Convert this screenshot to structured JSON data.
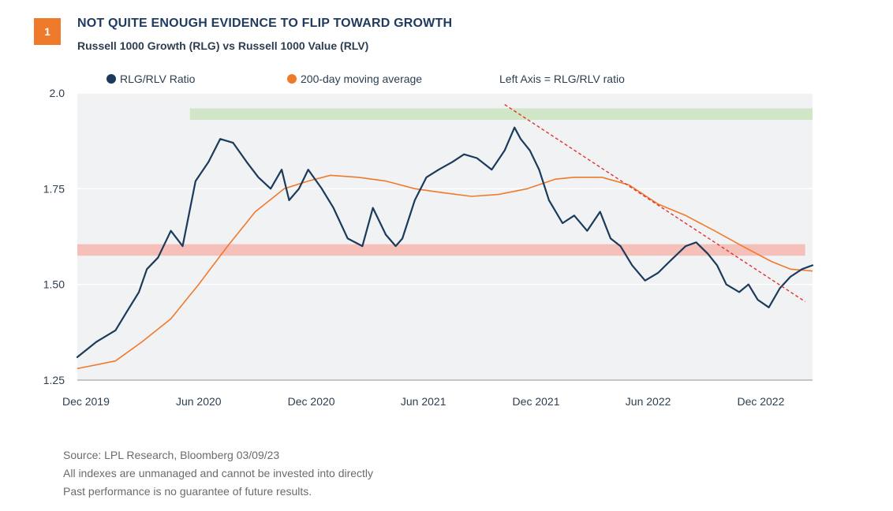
{
  "header": {
    "badge": "1",
    "title": "NOT QUITE ENOUGH EVIDENCE TO FLIP TOWARD GROWTH",
    "subtitle": "Russell 1000 Growth (RLG) vs Russell 1000 Value (RLV)"
  },
  "footnotes": [
    "Source: LPL Research, Bloomberg  03/09/23",
    "All indexes are unmanaged and cannot be invested into directly",
    "Past performance is no guarantee of future results."
  ],
  "colors": {
    "ratio": "#1b3a5c",
    "moving_average": "#f07a2b",
    "trendline": "#e0332f",
    "resistance_band": "#cfe4c4",
    "support_band": "#f4bdb6",
    "plot_background": "#f1f2f3",
    "gridline": "#ffffff"
  },
  "chart_data": {
    "type": "line",
    "legend": {
      "placement": "top",
      "note": "Left Axis = RLG/RLV ratio"
    },
    "x_ticks": [
      "Dec 2019",
      "Jun 2020",
      "Dec 2020",
      "Jun 2021",
      "Dec 2021",
      "Jun 2022",
      "Dec 2022"
    ],
    "ylim": [
      1.25,
      2.0
    ],
    "y_ticks": [
      {
        "value": 2.0,
        "label": "2.0"
      },
      {
        "value": 1.75,
        "label": "1.75"
      },
      {
        "value": 1.5,
        "label": "1.50"
      },
      {
        "value": 1.25,
        "label": "1.25"
      }
    ],
    "xlim": [
      "2019-12-01",
      "2023-03-09"
    ],
    "grid": true,
    "series": [
      {
        "name": "RLG/RLV Ratio",
        "key": "ratio",
        "x": [
          "2019-12-01",
          "2020-01-01",
          "2020-02-01",
          "2020-02-20",
          "2020-03-10",
          "2020-03-23",
          "2020-04-10",
          "2020-05-01",
          "2020-05-20",
          "2020-06-10",
          "2020-07-01",
          "2020-07-20",
          "2020-08-10",
          "2020-09-01",
          "2020-09-20",
          "2020-10-10",
          "2020-10-28",
          "2020-11-09",
          "2020-11-25",
          "2020-12-10",
          "2021-01-01",
          "2021-01-20",
          "2021-02-12",
          "2021-03-08",
          "2021-03-25",
          "2021-04-15",
          "2021-05-01",
          "2021-05-12",
          "2021-06-01",
          "2021-06-20",
          "2021-07-10",
          "2021-08-01",
          "2021-08-20",
          "2021-09-10",
          "2021-10-04",
          "2021-10-25",
          "2021-11-10",
          "2021-11-20",
          "2021-12-05",
          "2021-12-20",
          "2022-01-05",
          "2022-01-27",
          "2022-02-15",
          "2022-03-08",
          "2022-03-29",
          "2022-04-15",
          "2022-05-01",
          "2022-05-20",
          "2022-06-10",
          "2022-07-01",
          "2022-07-20",
          "2022-08-15",
          "2022-09-01",
          "2022-09-20",
          "2022-10-05",
          "2022-10-20",
          "2022-11-10",
          "2022-11-25",
          "2022-12-10",
          "2022-12-28",
          "2023-01-15",
          "2023-02-01",
          "2023-02-20",
          "2023-03-09"
        ],
        "values": [
          1.31,
          1.35,
          1.38,
          1.43,
          1.48,
          1.54,
          1.57,
          1.64,
          1.6,
          1.77,
          1.82,
          1.88,
          1.87,
          1.82,
          1.78,
          1.75,
          1.8,
          1.72,
          1.75,
          1.8,
          1.75,
          1.7,
          1.62,
          1.6,
          1.7,
          1.63,
          1.6,
          1.62,
          1.72,
          1.78,
          1.8,
          1.82,
          1.84,
          1.83,
          1.8,
          1.85,
          1.91,
          1.88,
          1.85,
          1.8,
          1.72,
          1.66,
          1.68,
          1.64,
          1.69,
          1.62,
          1.6,
          1.55,
          1.51,
          1.53,
          1.56,
          1.6,
          1.61,
          1.58,
          1.55,
          1.5,
          1.48,
          1.5,
          1.46,
          1.44,
          1.49,
          1.52,
          1.54,
          1.55
        ]
      },
      {
        "name": "200-day moving average",
        "key": "moving_average",
        "x": [
          "2019-12-01",
          "2020-02-01",
          "2020-03-15",
          "2020-05-01",
          "2020-06-15",
          "2020-08-01",
          "2020-09-15",
          "2020-11-01",
          "2020-12-10",
          "2021-01-15",
          "2021-03-01",
          "2021-04-15",
          "2021-06-01",
          "2021-07-15",
          "2021-09-01",
          "2021-10-15",
          "2021-12-01",
          "2022-01-15",
          "2022-02-15",
          "2022-04-01",
          "2022-05-15",
          "2022-07-01",
          "2022-08-15",
          "2022-10-01",
          "2022-11-15",
          "2023-01-01",
          "2023-02-01",
          "2023-03-09"
        ],
        "values": [
          1.28,
          1.3,
          1.35,
          1.41,
          1.5,
          1.6,
          1.69,
          1.75,
          1.77,
          1.785,
          1.78,
          1.77,
          1.75,
          1.74,
          1.73,
          1.735,
          1.75,
          1.775,
          1.78,
          1.78,
          1.76,
          1.71,
          1.68,
          1.64,
          1.6,
          1.56,
          1.54,
          1.535
        ]
      }
    ],
    "bands": [
      {
        "key": "resistance_band",
        "y": [
          1.93,
          1.96
        ],
        "x": [
          "2020-06-01",
          "2023-03-09"
        ]
      },
      {
        "key": "support_band",
        "y": [
          1.575,
          1.605
        ],
        "x": [
          "2019-12-01",
          "2023-02-25"
        ]
      }
    ],
    "trendline": {
      "x": [
        "2021-10-25",
        "2023-02-25"
      ],
      "y": [
        1.97,
        1.455
      ]
    }
  }
}
